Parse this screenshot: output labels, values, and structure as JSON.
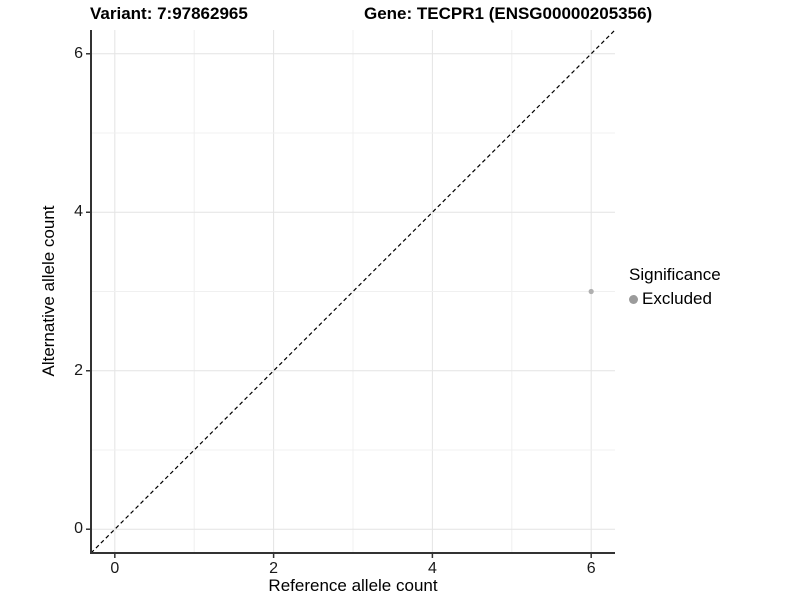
{
  "titles": {
    "variant": "Variant: 7:97862965",
    "gene": "Gene: TECPR1 (ENSG00000205356)"
  },
  "legend": {
    "title": "Significance",
    "entries": [
      {
        "label": "Excluded",
        "color": "#9b9b9b"
      }
    ]
  },
  "chart_data": {
    "type": "scatter",
    "title_left": "Variant: 7:97862965",
    "title_right": "Gene: TECPR1 (ENSG00000205356)",
    "xlabel": "Reference allele count",
    "ylabel": "Alternative allele count",
    "xlim": [
      -0.3,
      6.3
    ],
    "ylim": [
      -0.3,
      6.3
    ],
    "x_ticks": [
      0,
      2,
      4,
      6
    ],
    "y_ticks": [
      0,
      2,
      4,
      6
    ],
    "grid": "on",
    "gridline_interval": 1,
    "reference_line": {
      "style": "dashed",
      "color": "#000000",
      "from": [
        -0.3,
        -0.3
      ],
      "to": [
        6.3,
        6.3
      ]
    },
    "series": [
      {
        "name": "Excluded",
        "color": "#b0b0b0",
        "points": [
          {
            "x": 6,
            "y": 3
          }
        ]
      }
    ],
    "legend_position": "right",
    "legend_title": "Significance"
  }
}
